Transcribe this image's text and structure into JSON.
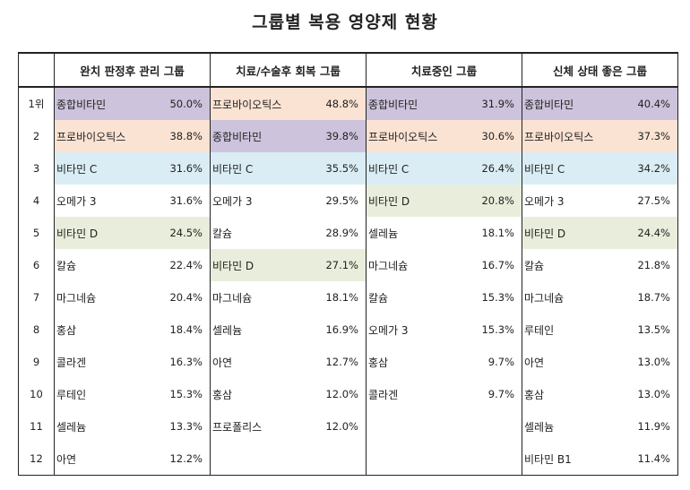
{
  "title": "그룹별 복용 영양제 현황",
  "colors": {
    "purple": "#cdc3dc",
    "peach": "#fbe3d3",
    "blue": "#daedf4",
    "green": "#e8eedb"
  },
  "groups": [
    {
      "name": "완치 판정후 관리 그룹"
    },
    {
      "name": "치료/수술후 회복 그룹"
    },
    {
      "name": "치료중인 그룹"
    },
    {
      "name": "신체 상태 좋은 그룹"
    }
  ],
  "rows": [
    {
      "rank": "1위",
      "cells": [
        {
          "name": "종합비타민",
          "pct": "50.0%",
          "color": "purple"
        },
        {
          "name": "프로바이오틱스",
          "pct": "48.8%",
          "color": "peach"
        },
        {
          "name": "종합비타민",
          "pct": "31.9%",
          "color": "purple"
        },
        {
          "name": "종합비타민",
          "pct": "40.4%",
          "color": "purple"
        }
      ]
    },
    {
      "rank": "2",
      "cells": [
        {
          "name": "프로바이오틱스",
          "pct": "38.8%",
          "color": "peach"
        },
        {
          "name": "종합비타민",
          "pct": "39.8%",
          "color": "purple"
        },
        {
          "name": "프로바이오틱스",
          "pct": "30.6%",
          "color": "peach"
        },
        {
          "name": "프로바이오틱스",
          "pct": "37.3%",
          "color": "peach"
        }
      ]
    },
    {
      "rank": "3",
      "cells": [
        {
          "name": "비타민 C",
          "pct": "31.6%",
          "color": "blue"
        },
        {
          "name": "비타민 C",
          "pct": "35.5%",
          "color": "blue"
        },
        {
          "name": "비타민 C",
          "pct": "26.4%",
          "color": "blue"
        },
        {
          "name": "비타민 C",
          "pct": "34.2%",
          "color": "blue"
        }
      ]
    },
    {
      "rank": "4",
      "cells": [
        {
          "name": "오메가 3",
          "pct": "31.6%",
          "color": ""
        },
        {
          "name": "오메가 3",
          "pct": "29.5%",
          "color": ""
        },
        {
          "name": "비타민 D",
          "pct": "20.8%",
          "color": "green"
        },
        {
          "name": "오메가 3",
          "pct": "27.5%",
          "color": ""
        }
      ]
    },
    {
      "rank": "5",
      "cells": [
        {
          "name": "비타민 D",
          "pct": "24.5%",
          "color": "green"
        },
        {
          "name": "칼슘",
          "pct": "28.9%",
          "color": ""
        },
        {
          "name": "셀레늄",
          "pct": "18.1%",
          "color": ""
        },
        {
          "name": "비타민 D",
          "pct": "24.4%",
          "color": "green"
        }
      ]
    },
    {
      "rank": "6",
      "cells": [
        {
          "name": "칼슘",
          "pct": "22.4%",
          "color": ""
        },
        {
          "name": "비타민 D",
          "pct": "27.1%",
          "color": "green"
        },
        {
          "name": "마그네슘",
          "pct": "16.7%",
          "color": ""
        },
        {
          "name": "칼슘",
          "pct": "21.8%",
          "color": ""
        }
      ]
    },
    {
      "rank": "7",
      "cells": [
        {
          "name": "마그네슘",
          "pct": "20.4%",
          "color": ""
        },
        {
          "name": "마그네슘",
          "pct": "18.1%",
          "color": ""
        },
        {
          "name": "칼슘",
          "pct": "15.3%",
          "color": ""
        },
        {
          "name": "마그네슘",
          "pct": "18.7%",
          "color": ""
        }
      ]
    },
    {
      "rank": "8",
      "cells": [
        {
          "name": "홍삼",
          "pct": "18.4%",
          "color": ""
        },
        {
          "name": "셀레늄",
          "pct": "16.9%",
          "color": ""
        },
        {
          "name": "오메가 3",
          "pct": "15.3%",
          "color": ""
        },
        {
          "name": "루테인",
          "pct": "13.5%",
          "color": ""
        }
      ]
    },
    {
      "rank": "9",
      "cells": [
        {
          "name": "콜라겐",
          "pct": "16.3%",
          "color": ""
        },
        {
          "name": "아연",
          "pct": "12.7%",
          "color": ""
        },
        {
          "name": "홍삼",
          "pct": "9.7%",
          "color": ""
        },
        {
          "name": "아연",
          "pct": "13.0%",
          "color": ""
        }
      ]
    },
    {
      "rank": "10",
      "cells": [
        {
          "name": "루테인",
          "pct": "15.3%",
          "color": ""
        },
        {
          "name": "홍삼",
          "pct": "12.0%",
          "color": ""
        },
        {
          "name": "콜라겐",
          "pct": "9.7%",
          "color": ""
        },
        {
          "name": "홍삼",
          "pct": "13.0%",
          "color": ""
        }
      ]
    },
    {
      "rank": "11",
      "cells": [
        {
          "name": "셀레늄",
          "pct": "13.3%",
          "color": ""
        },
        {
          "name": "프로폴리스",
          "pct": "12.0%",
          "color": ""
        },
        {
          "name": "",
          "pct": "",
          "color": ""
        },
        {
          "name": "셀레늄",
          "pct": "11.9%",
          "color": ""
        }
      ]
    },
    {
      "rank": "12",
      "cells": [
        {
          "name": "아연",
          "pct": "12.2%",
          "color": ""
        },
        {
          "name": "",
          "pct": "",
          "color": ""
        },
        {
          "name": "",
          "pct": "",
          "color": ""
        },
        {
          "name": "비타민 B1",
          "pct": "11.4%",
          "color": ""
        }
      ]
    }
  ]
}
